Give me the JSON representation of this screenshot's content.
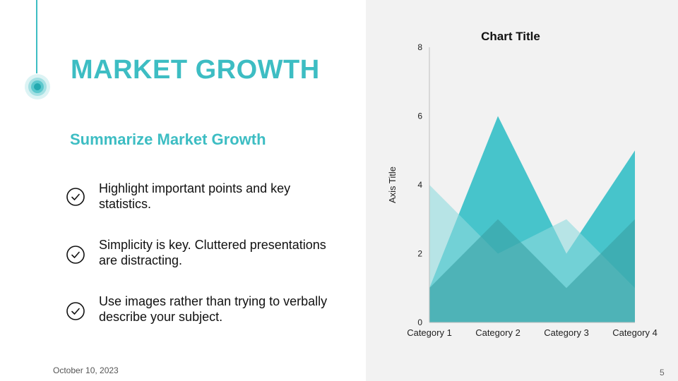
{
  "slide": {
    "title": "MARKET GROWTH",
    "subtitle": "Summarize Market Growth",
    "bullets": [
      {
        "text": "Highlight important points and key statistics."
      },
      {
        "text": "Simplicity is key. Cluttered presentations are distracting."
      },
      {
        "text": "Use images rather than trying to verbally describe your subject."
      }
    ],
    "footer": {
      "date": "October 10, 2023",
      "page_number": "5"
    },
    "colors": {
      "accent": "#3dbdc3",
      "right_panel_bg": "#f2f2f2"
    }
  },
  "chart_data": {
    "type": "area",
    "title": "Chart Title",
    "xlabel": "",
    "ylabel": "Axis Title",
    "categories": [
      "Category 1",
      "Category 2",
      "Category 3",
      "Category 4"
    ],
    "ylim": [
      0,
      8
    ],
    "yticks": [
      0,
      2,
      4,
      6,
      8
    ],
    "grid": false,
    "legend": "none",
    "series": [
      {
        "values": [
          1,
          6,
          2,
          5
        ],
        "color": "#29bcc4",
        "opacity": 0.85
      },
      {
        "values": [
          4,
          2,
          3,
          1
        ],
        "color": "#8fdade",
        "opacity": 0.6
      },
      {
        "values": [
          1,
          3,
          1,
          3
        ],
        "color": "#3aa3a6",
        "opacity": 0.65
      }
    ]
  }
}
